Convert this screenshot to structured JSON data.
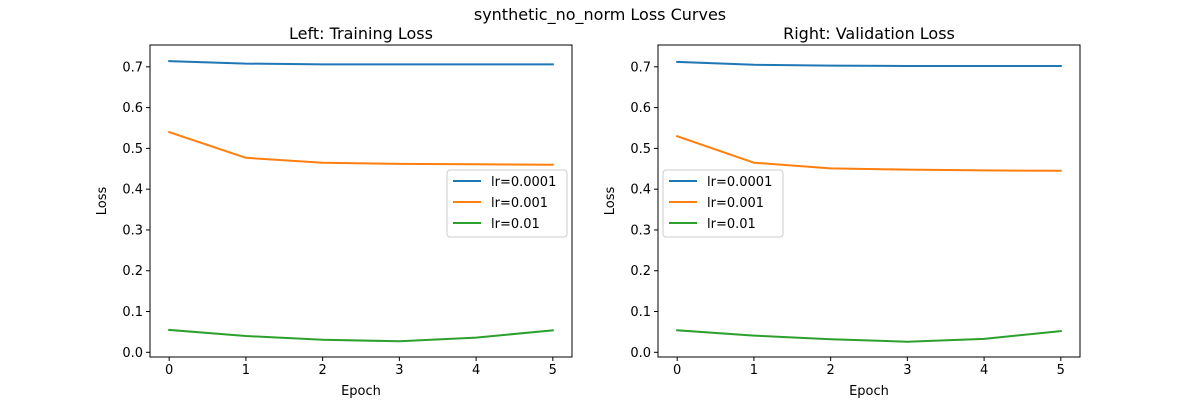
{
  "figure": {
    "suptitle": "synthetic_no_norm Loss Curves"
  },
  "chart_data": [
    {
      "type": "line",
      "title": "Left: Training Loss",
      "xlabel": "Epoch",
      "ylabel": "Loss",
      "x": [
        0,
        1,
        2,
        3,
        4,
        5
      ],
      "xticks": [
        "0",
        "1",
        "2",
        "3",
        "4",
        "5"
      ],
      "yticks": [
        "0.0",
        "0.1",
        "0.2",
        "0.3",
        "0.4",
        "0.5",
        "0.6",
        "0.7"
      ],
      "xlim": [
        -0.25,
        5.25
      ],
      "ylim": [
        -0.0115,
        0.7535
      ],
      "grid": false,
      "legend_position": "center-right",
      "series": [
        {
          "name": "lr=0.0001",
          "color": "#1f77b4",
          "values": [
            0.714,
            0.708,
            0.706,
            0.706,
            0.706,
            0.706
          ]
        },
        {
          "name": "lr=0.001",
          "color": "#ff7f0e",
          "values": [
            0.54,
            0.477,
            0.465,
            0.462,
            0.461,
            0.46
          ]
        },
        {
          "name": "lr=0.01",
          "color": "#2ca02c",
          "values": [
            0.055,
            0.04,
            0.031,
            0.027,
            0.036,
            0.054
          ]
        }
      ]
    },
    {
      "type": "line",
      "title": "Right: Validation Loss",
      "xlabel": "Epoch",
      "ylabel": "Loss",
      "x": [
        0,
        1,
        2,
        3,
        4,
        5
      ],
      "xticks": [
        "0",
        "1",
        "2",
        "3",
        "4",
        "5"
      ],
      "yticks": [
        "0.0",
        "0.1",
        "0.2",
        "0.3",
        "0.4",
        "0.5",
        "0.6",
        "0.7"
      ],
      "xlim": [
        -0.25,
        5.25
      ],
      "ylim": [
        -0.0115,
        0.7535
      ],
      "grid": false,
      "legend_position": "center-left",
      "series": [
        {
          "name": "lr=0.0001",
          "color": "#1f77b4",
          "values": [
            0.712,
            0.705,
            0.703,
            0.702,
            0.702,
            0.702
          ]
        },
        {
          "name": "lr=0.001",
          "color": "#ff7f0e",
          "values": [
            0.53,
            0.465,
            0.451,
            0.448,
            0.446,
            0.445
          ]
        },
        {
          "name": "lr=0.01",
          "color": "#2ca02c",
          "values": [
            0.054,
            0.041,
            0.032,
            0.026,
            0.033,
            0.052
          ]
        }
      ]
    }
  ]
}
